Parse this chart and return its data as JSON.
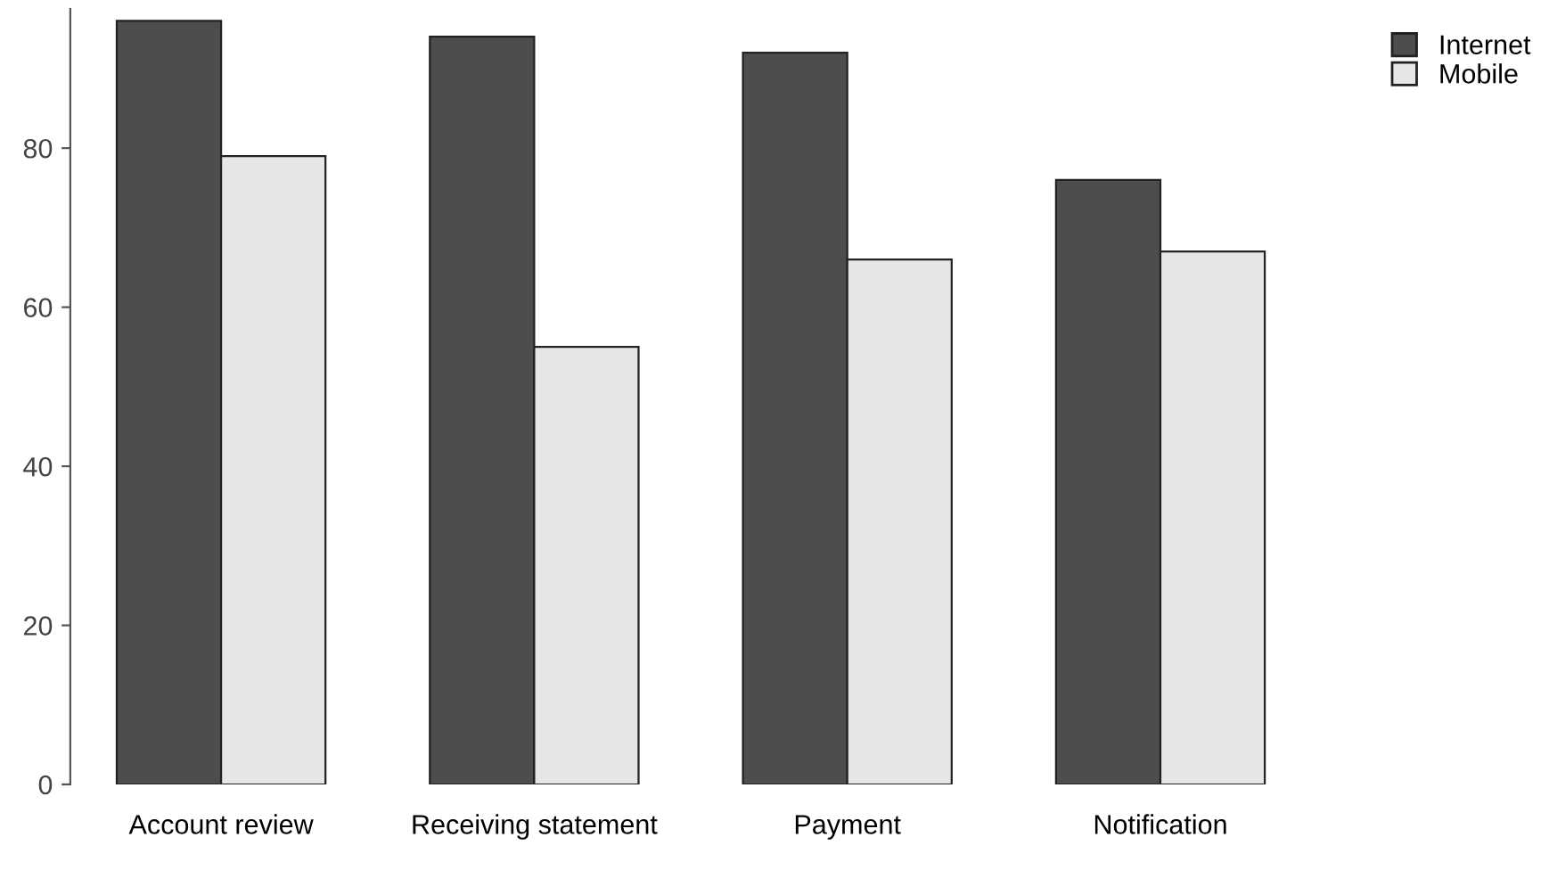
{
  "chart_data": {
    "type": "bar",
    "categories": [
      "Account review",
      "Receiving statement",
      "Payment",
      "Notification"
    ],
    "series": [
      {
        "name": "Internet",
        "color": "#4d4d4d",
        "values": [
          96,
          94,
          92,
          76
        ]
      },
      {
        "name": "Mobile",
        "color": "#e6e6e6",
        "values": [
          79,
          55,
          66,
          67
        ]
      }
    ],
    "ylim": [
      0,
      97.5
    ],
    "yticks": [
      0,
      20,
      40,
      60,
      80
    ],
    "grid": false,
    "legend": "top right"
  }
}
